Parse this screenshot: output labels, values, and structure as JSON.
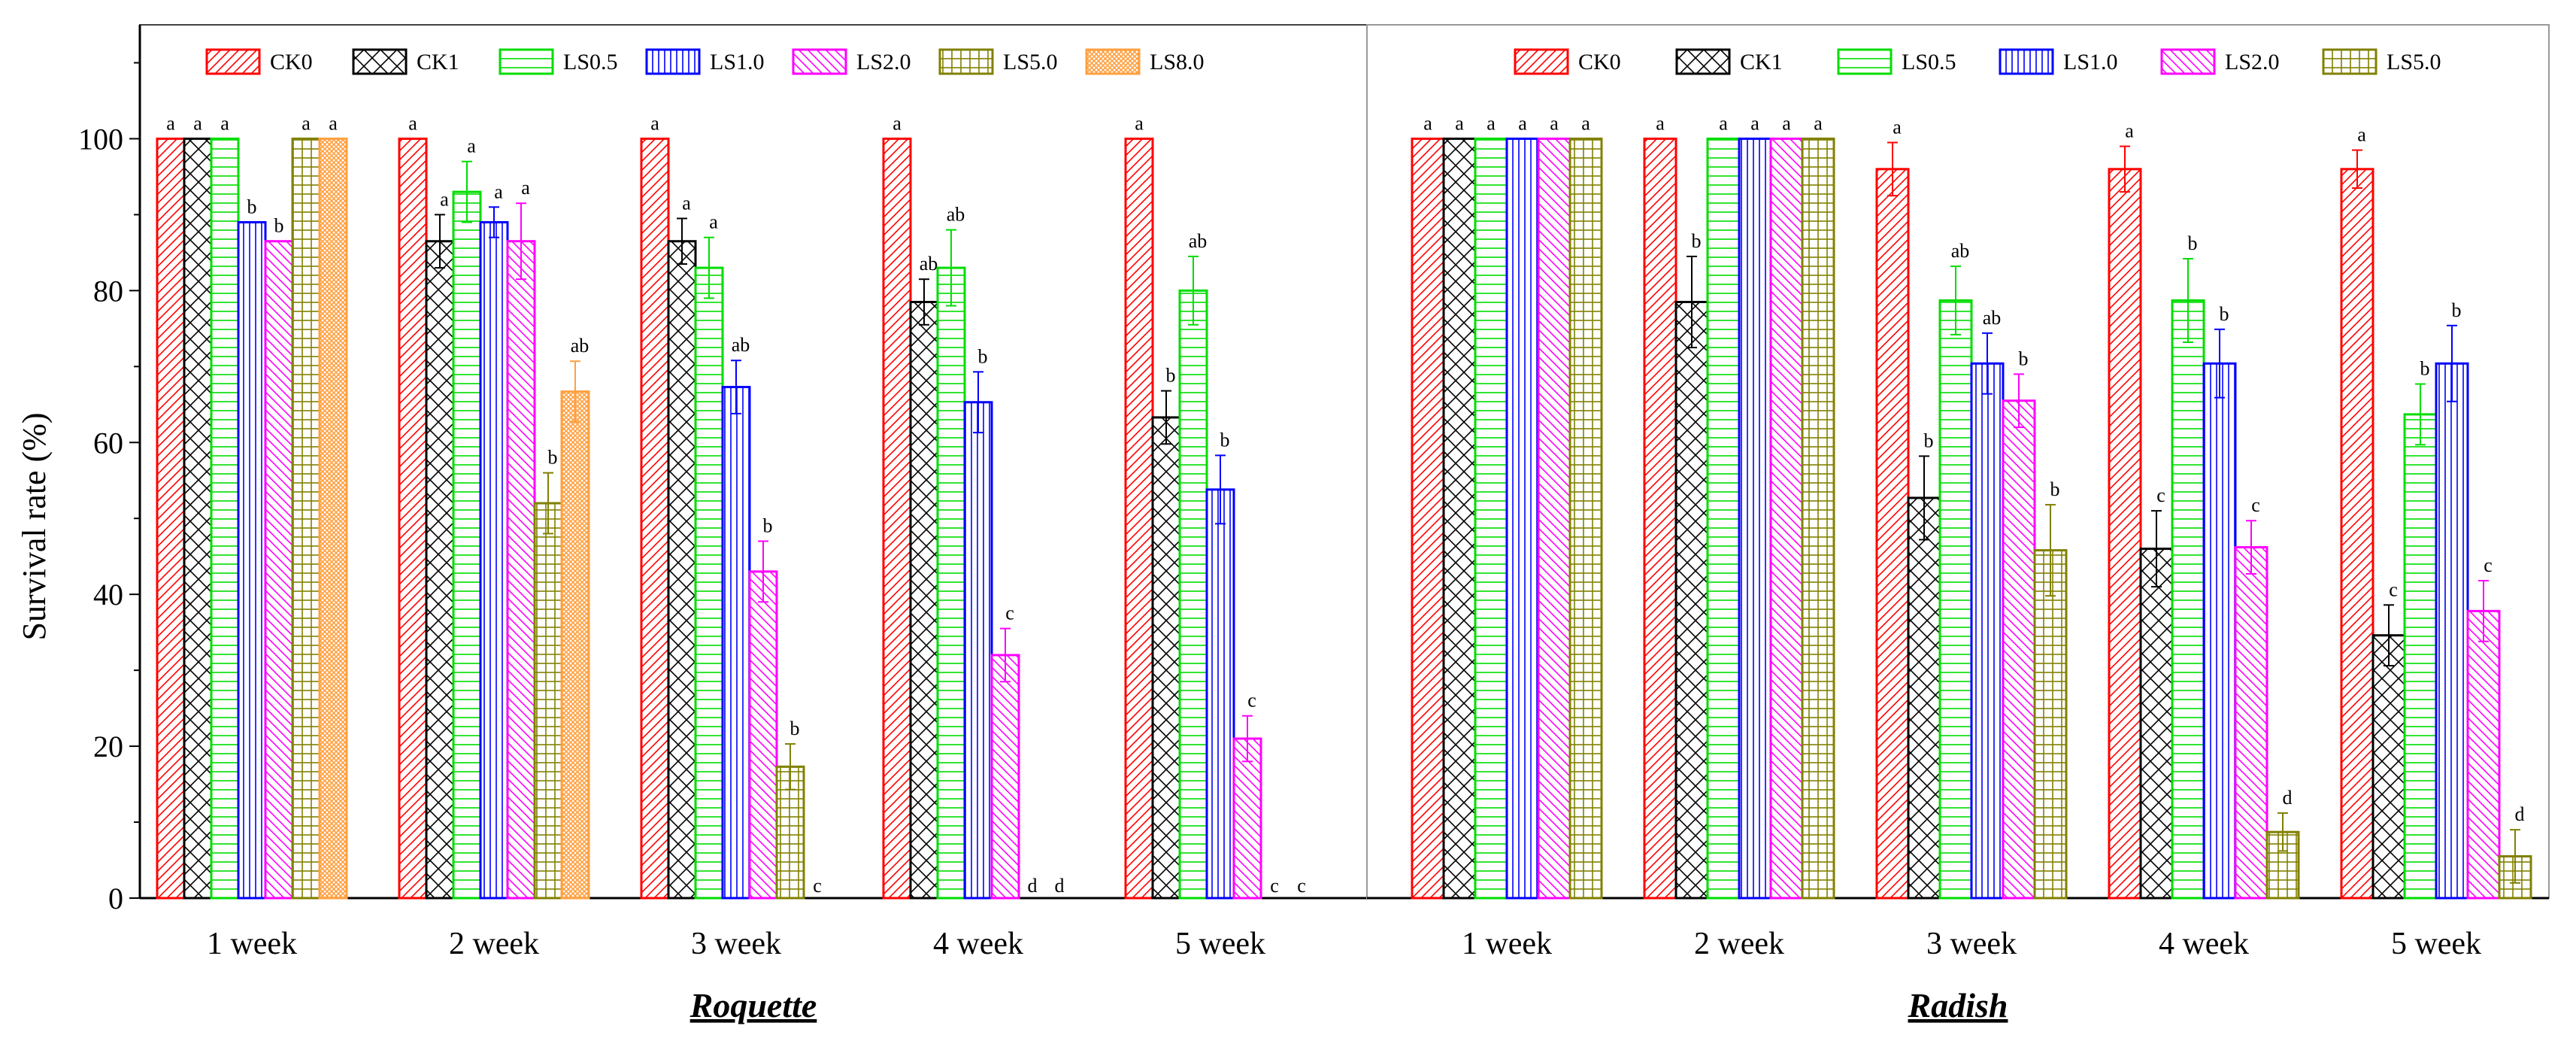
{
  "ylabel": "Survival rate (%)",
  "y_ticks": [
    "0",
    "20",
    "40",
    "60",
    "80",
    "100"
  ],
  "series_styles": [
    {
      "name": "CK0",
      "color": "#ff0000",
      "pattern": "diag-right"
    },
    {
      "name": "CK1",
      "color": "#000000",
      "pattern": "crosshatch"
    },
    {
      "name": "LS0.5",
      "color": "#00dd00",
      "pattern": "horizontal"
    },
    {
      "name": "LS1.0",
      "color": "#0000ff",
      "pattern": "vertical"
    },
    {
      "name": "LS2.0",
      "color": "#ff00ff",
      "pattern": "diag-left"
    },
    {
      "name": "LS5.0",
      "color": "#808000",
      "pattern": "grid"
    },
    {
      "name": "LS8.0",
      "color": "#ffa040",
      "pattern": "fine-cross"
    }
  ],
  "chart_data": [
    {
      "type": "bar",
      "title": "Roquette",
      "xlabel": "",
      "ylabel": "Survival rate (%)",
      "ylim": [
        0,
        115
      ],
      "grid": false,
      "legend_position": "top",
      "categories": [
        "1 week",
        "2 week",
        "3 week",
        "4 week",
        "5 week"
      ],
      "series": [
        {
          "name": "CK0",
          "values": [
            100,
            100,
            100,
            100,
            100
          ],
          "errors": [
            0,
            0,
            0,
            0,
            0
          ],
          "letters": [
            "a",
            "a",
            "a",
            "a",
            "a"
          ]
        },
        {
          "name": "CK1",
          "values": [
            100,
            86.5,
            86.5,
            78.5,
            63.3
          ],
          "errors": [
            0,
            3.5,
            3,
            3,
            3.5
          ],
          "letters": [
            "a",
            "a",
            "a",
            "ab",
            "b"
          ]
        },
        {
          "name": "LS0.5",
          "values": [
            100,
            93,
            83,
            83,
            80
          ],
          "errors": [
            0,
            4,
            4,
            5,
            4.5
          ],
          "letters": [
            "a",
            "a",
            "a",
            "ab",
            "ab"
          ]
        },
        {
          "name": "LS1.0",
          "values": [
            89,
            89,
            67.3,
            65.3,
            53.8
          ],
          "errors": [
            0,
            2,
            3.5,
            4,
            4.5
          ],
          "letters": [
            "b",
            "a",
            "ab",
            "b",
            "b"
          ]
        },
        {
          "name": "LS2.0",
          "values": [
            86.5,
            86.5,
            43,
            32,
            21
          ],
          "errors": [
            0,
            5,
            4,
            3.5,
            3
          ],
          "letters": [
            "b",
            "a",
            "b",
            "c",
            "c"
          ]
        },
        {
          "name": "LS5.0",
          "values": [
            100,
            52,
            17.3,
            0,
            0
          ],
          "errors": [
            0,
            4,
            3,
            0,
            0
          ],
          "letters": [
            "a",
            "b",
            "b",
            "d",
            "c"
          ]
        },
        {
          "name": "LS8.0",
          "values": [
            100,
            66.7,
            0,
            0,
            0
          ],
          "errors": [
            0,
            4,
            0,
            0,
            0
          ],
          "letters": [
            "a",
            "ab",
            "c",
            "d",
            "c"
          ]
        }
      ]
    },
    {
      "type": "bar",
      "title": "Radish",
      "xlabel": "",
      "ylabel": "Survival rate (%)",
      "ylim": [
        0,
        115
      ],
      "grid": false,
      "legend_position": "top",
      "categories": [
        "1 week",
        "2 week",
        "3 week",
        "4 week",
        "5 week"
      ],
      "series": [
        {
          "name": "CK0",
          "values": [
            100,
            100,
            96,
            96,
            96
          ],
          "errors": [
            0,
            0,
            3.5,
            3,
            2.5
          ],
          "letters": [
            "a",
            "a",
            "a",
            "a",
            "a"
          ]
        },
        {
          "name": "CK1",
          "values": [
            100,
            78.5,
            52.7,
            46,
            34.6
          ],
          "errors": [
            0,
            6,
            5.5,
            5,
            4
          ],
          "letters": [
            "a",
            "b",
            "b",
            "c",
            "c"
          ]
        },
        {
          "name": "LS0.5",
          "values": [
            100,
            100,
            78.7,
            78.7,
            63.7
          ],
          "errors": [
            0,
            0,
            4.5,
            5.5,
            4
          ],
          "letters": [
            "a",
            "a",
            "ab",
            "b",
            "b"
          ]
        },
        {
          "name": "LS1.0",
          "values": [
            100,
            100,
            70.4,
            70.4,
            70.4
          ],
          "errors": [
            0,
            0,
            4,
            4.5,
            5
          ],
          "letters": [
            "a",
            "a",
            "ab",
            "b",
            "b"
          ]
        },
        {
          "name": "LS2.0",
          "values": [
            100,
            100,
            65.5,
            46.2,
            37.8
          ],
          "errors": [
            0,
            0,
            3.5,
            3.5,
            4
          ],
          "letters": [
            "a",
            "a",
            "b",
            "c",
            "c"
          ]
        },
        {
          "name": "LS5.0",
          "values": [
            100,
            100,
            45.8,
            8.7,
            5.5
          ],
          "errors": [
            0,
            0,
            6,
            2.5,
            3.5
          ],
          "letters": [
            "a",
            "a",
            "b",
            "d",
            "d"
          ]
        }
      ]
    }
  ]
}
